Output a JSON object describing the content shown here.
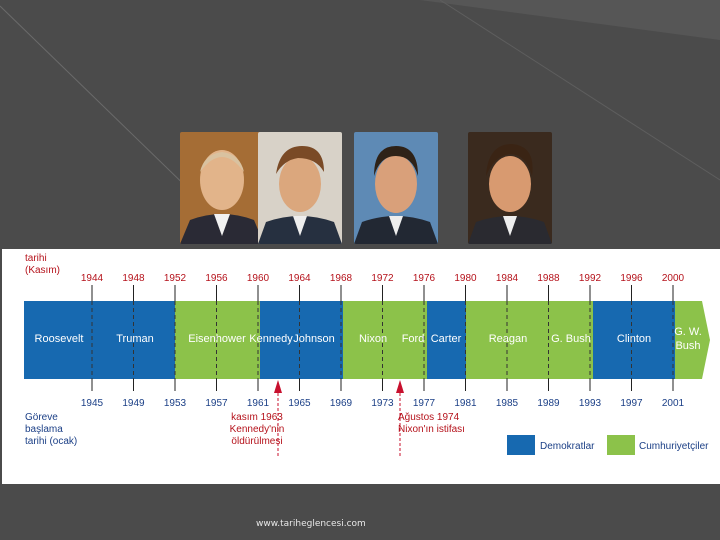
{
  "inauguration_top_label": [
    "tarihi",
    "(Kasım)"
  ],
  "inauguration_bottom_label": [
    "Göreve",
    "başlama",
    "tarihi (ocak)"
  ],
  "election_years": [
    "1944",
    "1948",
    "1952",
    "1956",
    "1960",
    "1964",
    "1968",
    "1972",
    "1976",
    "1980",
    "1984",
    "1988",
    "1992",
    "1996",
    "2000"
  ],
  "inauguration_years": [
    "1945",
    "1949",
    "1953",
    "1957",
    "1961",
    "1965",
    "1969",
    "1973",
    "1977",
    "1981",
    "1985",
    "1989",
    "1993",
    "1997",
    "2001"
  ],
  "presidents": [
    {
      "name": "Roosevelt",
      "party": "dem"
    },
    {
      "name": "Truman",
      "party": "dem"
    },
    {
      "name": "Eisenhower",
      "party": "rep"
    },
    {
      "name": "Kennedy",
      "party": "dem"
    },
    {
      "name": "Johnson",
      "party": "dem"
    },
    {
      "name": "Nixon",
      "party": "rep"
    },
    {
      "name": "Ford",
      "party": "rep"
    },
    {
      "name": "Carter",
      "party": "dem"
    },
    {
      "name": "Reagan",
      "party": "rep"
    },
    {
      "name": "G. Bush",
      "party": "rep"
    },
    {
      "name": "Clinton",
      "party": "dem"
    },
    {
      "name": "G. W. Bush",
      "party": "rep"
    }
  ],
  "events": [
    {
      "lines": [
        "kasım 1963",
        "Kennedy'nin",
        "öldürülmesi"
      ]
    },
    {
      "lines": [
        "Ağustos 1974",
        "Nixon'ın istifası"
      ]
    }
  ],
  "legend": {
    "dem": "Demokratlar",
    "rep": "Cumhuriyetçiler"
  },
  "colors": {
    "dem": "#1769b0",
    "rep": "#8cc24a",
    "event": "#c8102e"
  },
  "portraits": [
    "Eisenhower portrait",
    "Kennedy portrait",
    "Nixon portrait",
    "Reagan portrait"
  ],
  "footer": "www.tariheglencesi.com"
}
